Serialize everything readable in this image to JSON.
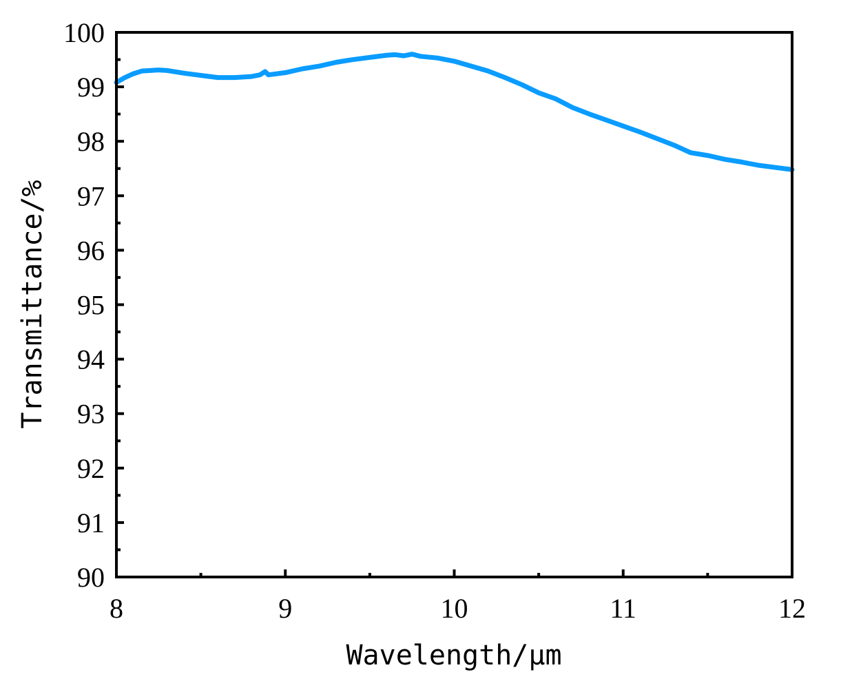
{
  "colors": {
    "line": "#0a9cff",
    "axis": "#000000",
    "background": "#ffffff"
  },
  "chart_data": {
    "type": "line",
    "title": "",
    "xlabel": "Wavelength/μm",
    "ylabel": "Transmittance/%",
    "xlim": [
      8,
      12
    ],
    "ylim": [
      90,
      100
    ],
    "x_ticks": [
      8,
      9,
      10,
      11,
      12
    ],
    "y_ticks": [
      90,
      91,
      92,
      93,
      94,
      95,
      96,
      97,
      98,
      99,
      100
    ],
    "grid": false,
    "series": [
      {
        "x": [
          8.0,
          8.05,
          8.1,
          8.15,
          8.2,
          8.25,
          8.3,
          8.4,
          8.5,
          8.6,
          8.7,
          8.8,
          8.85,
          8.88,
          8.9,
          9.0,
          9.1,
          9.2,
          9.3,
          9.4,
          9.5,
          9.6,
          9.65,
          9.7,
          9.75,
          9.8,
          9.9,
          10.0,
          10.1,
          10.2,
          10.3,
          10.4,
          10.5,
          10.6,
          10.7,
          10.8,
          10.9,
          11.0,
          11.1,
          11.2,
          11.3,
          11.4,
          11.5,
          11.6,
          11.7,
          11.8,
          11.9,
          12.0
        ],
        "y": [
          99.08,
          99.17,
          99.24,
          99.29,
          99.3,
          99.31,
          99.3,
          99.25,
          99.21,
          99.17,
          99.17,
          99.19,
          99.22,
          99.28,
          99.22,
          99.26,
          99.33,
          99.38,
          99.45,
          99.5,
          99.54,
          99.58,
          99.59,
          99.57,
          99.6,
          99.56,
          99.53,
          99.47,
          99.38,
          99.29,
          99.17,
          99.04,
          98.89,
          98.78,
          98.62,
          98.5,
          98.39,
          98.28,
          98.17,
          98.05,
          97.93,
          97.79,
          97.74,
          97.67,
          97.62,
          97.56,
          97.52,
          97.48
        ]
      }
    ]
  }
}
